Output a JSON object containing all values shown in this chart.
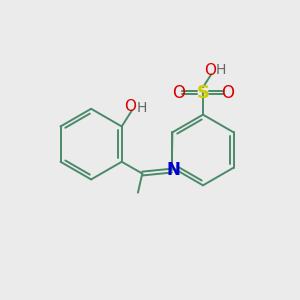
{
  "bg_color": "#ebebeb",
  "bond_color": "#4a8a6a",
  "n_color": "#0000cc",
  "s_color": "#cccc00",
  "o_color": "#dd0000",
  "h_color": "#666666",
  "lw": 1.4,
  "fig_size": [
    3.0,
    3.0
  ],
  "dpi": 100,
  "xlim": [
    0,
    10
  ],
  "ylim": [
    0,
    10
  ]
}
